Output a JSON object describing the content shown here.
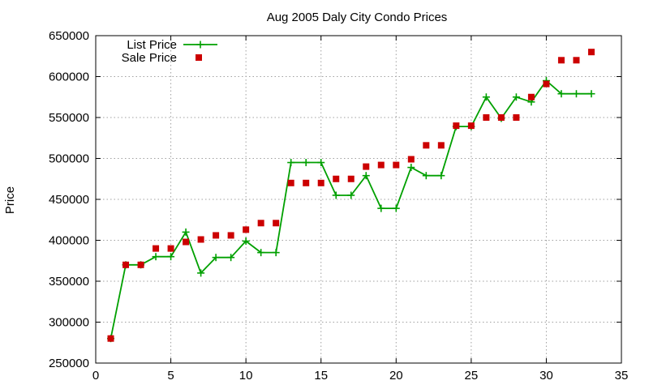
{
  "chart_data": {
    "type": "line",
    "title": "Aug 2005 Daly City Condo Prices",
    "xlabel": "",
    "ylabel": "Price",
    "xlim": [
      0,
      35
    ],
    "ylim": [
      250000,
      650000
    ],
    "xticks": [
      0,
      5,
      10,
      15,
      20,
      25,
      30,
      35
    ],
    "yticks": [
      250000,
      300000,
      350000,
      400000,
      450000,
      500000,
      550000,
      600000,
      650000
    ],
    "grid": true,
    "legend_position": "top-left",
    "series": [
      {
        "name": "List Price",
        "style": "line-points",
        "color": "#00a000",
        "x": [
          1,
          2,
          3,
          4,
          5,
          6,
          7,
          8,
          9,
          10,
          11,
          12,
          13,
          14,
          15,
          16,
          17,
          18,
          19,
          20,
          21,
          22,
          23,
          24,
          25,
          26,
          27,
          28,
          29,
          30,
          31,
          32,
          33
        ],
        "y": [
          280000,
          370000,
          370000,
          380000,
          380000,
          410000,
          360000,
          379000,
          379000,
          399000,
          385000,
          385000,
          495000,
          495000,
          495000,
          455000,
          455000,
          479000,
          439000,
          439000,
          489000,
          479000,
          479000,
          539000,
          539000,
          575000,
          549000,
          575000,
          569000,
          595000,
          579000,
          579000,
          579000
        ]
      },
      {
        "name": "Sale Price",
        "style": "points",
        "color": "#cc0000",
        "x": [
          1,
          2,
          3,
          4,
          5,
          6,
          7,
          8,
          9,
          10,
          11,
          12,
          13,
          14,
          15,
          16,
          17,
          18,
          19,
          20,
          21,
          22,
          23,
          24,
          25,
          26,
          27,
          28,
          29,
          30,
          31,
          32,
          33
        ],
        "y": [
          280000,
          370000,
          370000,
          390000,
          390000,
          398000,
          401000,
          406000,
          406000,
          413000,
          421000,
          421000,
          470000,
          470000,
          470000,
          475000,
          475000,
          490000,
          492000,
          492000,
          499000,
          516000,
          516000,
          540000,
          540000,
          550000,
          550000,
          550000,
          575000,
          591000,
          620000,
          620000,
          630000
        ]
      }
    ]
  }
}
